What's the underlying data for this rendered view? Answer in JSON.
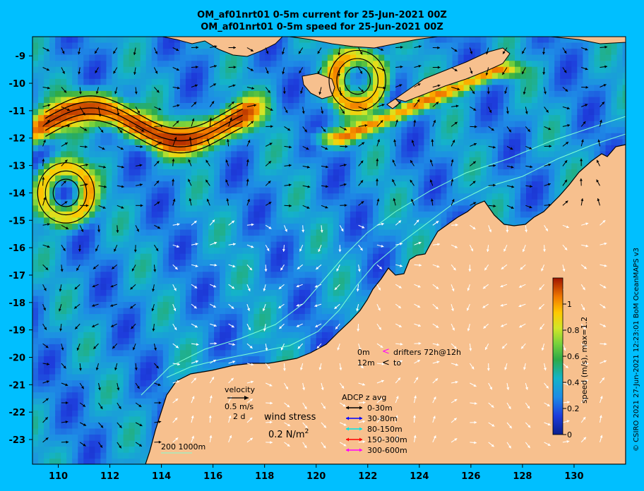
{
  "titles": {
    "line1": "OM_af01nrt01 0-5m current for 25-Jun-2021 00Z",
    "line2": "OM_af01nrt01 0-5m speed for 25-Jun-2021 00Z"
  },
  "credit": "© CSIRO 2021  27-Jun-2021 12:23:01 BoM OceanMAPS v3",
  "colorbar": {
    "label": "speed (m/s), max=1.2",
    "ticks": [
      "0",
      "0.2",
      "0.4",
      "0.6",
      "0.8",
      "1"
    ]
  },
  "legend": {
    "velocity_label": "velocity",
    "velocity_scale": "0.5 m/s",
    "velocity_time": "2 d",
    "wind_label": "wind stress",
    "wind_scale": "0.2 N/m",
    "wind_sup": "2",
    "drifter_depth1": "0m",
    "drifter_sym1": "<",
    "drifter_text1": "drifters 72h@12h",
    "drifter_depth2": "12m",
    "drifter_sym2": "<",
    "drifter_text2": "to",
    "adcp_title": "ADCP z avg",
    "adcp_items": [
      {
        "label": "0-30m",
        "color": "#000000"
      },
      {
        "label": "30-80m",
        "color": "#0000FF"
      },
      {
        "label": "80-150m",
        "color": "#00E5E5"
      },
      {
        "label": "150-300m",
        "color": "#FF0000"
      },
      {
        "label": "300-600m",
        "color": "#FF00FF"
      }
    ],
    "isobaths": "200  1000m"
  },
  "chart_data": {
    "type": "heatmap",
    "title": "OM_af01nrt01 0-5m current for 25-Jun-2021 00Z",
    "variable": "speed (m/s), max=1.2",
    "x_ticks": [
      "110",
      "112",
      "114",
      "116",
      "118",
      "120",
      "122",
      "124",
      "126",
      "128",
      "130"
    ],
    "y_ticks": [
      "-9",
      "-10",
      "-11",
      "-12",
      "-13",
      "-14",
      "-15",
      "-16",
      "-17",
      "-18",
      "-19",
      "-20",
      "-21",
      "-22",
      "-23"
    ],
    "xlim": [
      109,
      132
    ],
    "ylim": [
      -23.9,
      -8.3
    ],
    "color_range": [
      0,
      1
    ],
    "colors": {
      "ocean_slow": "#1E3CDC",
      "ocean_mid": "#1E8CE6",
      "ocean_fast": "#46BE50",
      "jet_core": "#F5A000",
      "land": "#F7C08E",
      "background": "#00BFFF"
    },
    "features": [
      {
        "name": "westward jet",
        "lon_range": [
          109.5,
          117
        ],
        "lat": -11.5,
        "speed": 0.8
      },
      {
        "name": "eddy",
        "lon": 110.3,
        "lat": -14,
        "speed": 0.5
      },
      {
        "name": "eddy",
        "lon": 121.6,
        "lat": -9.9,
        "speed": 0.5
      },
      {
        "name": "coastal current",
        "lon_range": [
          121,
          127
        ],
        "lat_range": [
          -12,
          -9.5
        ],
        "speed": 0.6
      }
    ]
  }
}
